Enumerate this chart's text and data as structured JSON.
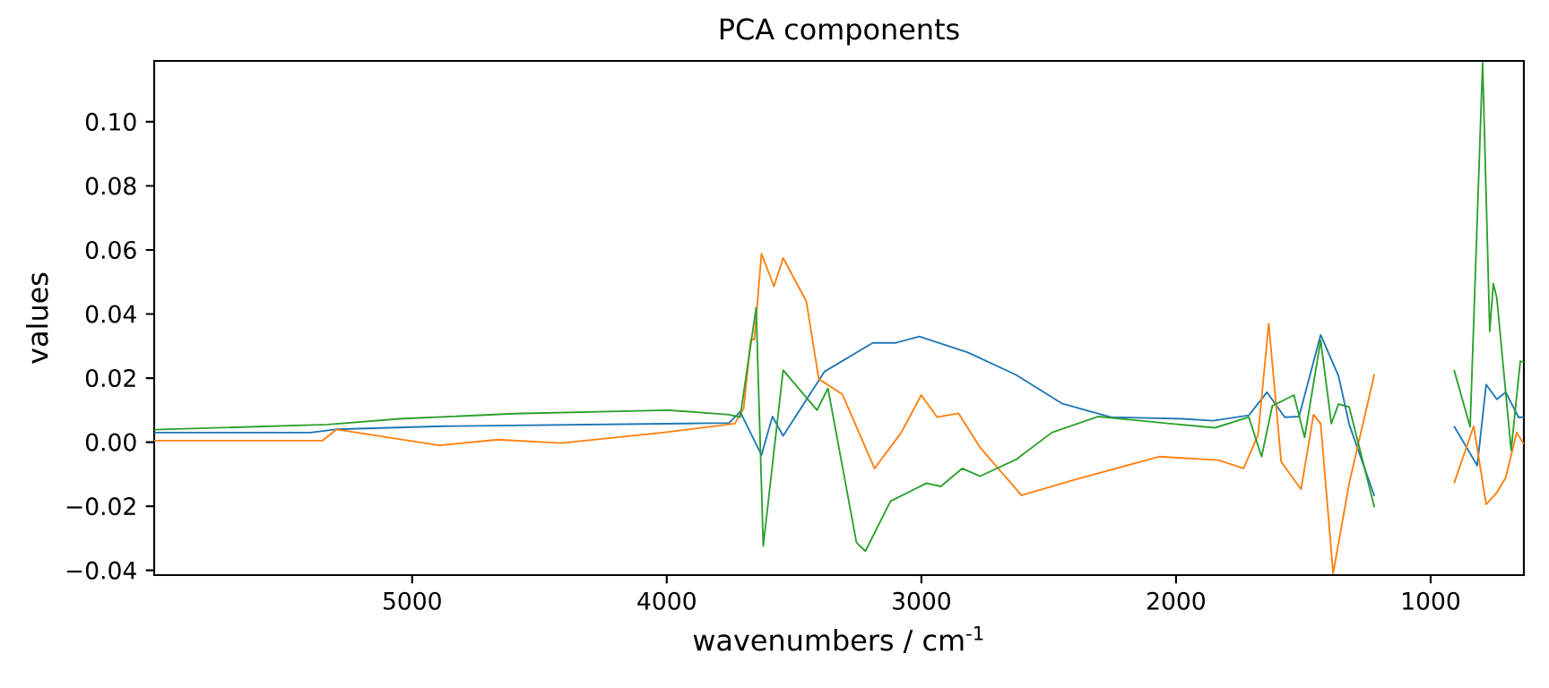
{
  "chart_data": {
    "type": "line",
    "title": "PCA components",
    "xlabel": "wavenumbers / cm$^{-1}$",
    "ylabel": "values",
    "xlim": [
      6013,
      634
    ],
    "ylim": [
      -0.0415,
      0.119
    ],
    "xticks": [
      5000,
      4000,
      3000,
      2000,
      1000
    ],
    "yticks": [
      {
        "value": -0.04,
        "label": "−0.04"
      },
      {
        "value": -0.02,
        "label": "−0.02"
      },
      {
        "value": 0,
        "label": "0.00"
      },
      {
        "value": 0.02,
        "label": "0.02"
      },
      {
        "value": 0.04,
        "label": "0.04"
      },
      {
        "value": 0.06,
        "label": "0.06"
      },
      {
        "value": 0.08,
        "label": "0.08"
      },
      {
        "value": 0.1,
        "label": "0.10"
      }
    ],
    "series": [
      {
        "color": "#1f77b4",
        "x": [
          6013,
          5400,
          5300,
          4880,
          3755,
          3712,
          3628,
          3585,
          3543,
          3381,
          3191,
          3100,
          3008,
          2818,
          2628,
          2446,
          2256,
          1974,
          1855,
          1714,
          1643,
          1573,
          1517,
          1432,
          1362,
          1320,
          1221,
          1070,
          908,
          817,
          782,
          740,
          705,
          655,
          634
        ],
        "values": [
          0.003,
          0.003,
          0.004,
          0.005,
          0.006,
          0.0095,
          -0.004,
          0.008,
          0.002,
          0.022,
          0.031,
          0.031,
          0.033,
          0.028,
          0.021,
          0.012,
          0.0078,
          0.0073,
          0.0067,
          0.0084,
          0.0156,
          0.0078,
          0.008,
          0.0335,
          0.0207,
          0.0056,
          -0.0168,
          null,
          0.005,
          -0.0073,
          0.018,
          0.0134,
          0.0156,
          0.0078,
          0.0078
        ]
      },
      {
        "color": "#ff7f0e",
        "x": [
          6013,
          5352,
          5296,
          4894,
          4662,
          4416,
          4015,
          3733,
          3698,
          3670,
          3656,
          3628,
          3579,
          3543,
          3452,
          3403,
          3311,
          3184,
          3079,
          3001,
          2938,
          2854,
          2769,
          2607,
          2396,
          2065,
          1833,
          1735,
          1678,
          1636,
          1587,
          1509,
          1460,
          1432,
          1383,
          1320,
          1221,
          1070,
          908,
          831,
          782,
          740,
          705,
          662,
          634
        ],
        "values": [
          0.0005,
          0.0005,
          0.004,
          -0.001,
          0.0008,
          -0.0003,
          0.003,
          0.0058,
          0.0105,
          0.032,
          0.032,
          0.0588,
          0.0486,
          0.0575,
          0.044,
          0.0197,
          0.015,
          -0.0082,
          0.003,
          0.0147,
          0.0078,
          0.009,
          -0.0017,
          -0.0166,
          -0.0117,
          -0.0045,
          -0.0056,
          -0.0082,
          0.0022,
          0.037,
          -0.0061,
          -0.0147,
          0.0086,
          0.0058,
          -0.041,
          -0.0128,
          0.0212,
          null,
          -0.0128,
          0.005,
          -0.0194,
          -0.0157,
          -0.011,
          0.003,
          -0.0006
        ]
      },
      {
        "color": "#2ca02c",
        "x": [
          6013,
          5331,
          5049,
          4599,
          3994,
          3755,
          3712,
          3649,
          3621,
          3543,
          3410,
          3367,
          3255,
          3220,
          3121,
          2980,
          2924,
          2840,
          2769,
          2628,
          2488,
          2305,
          2023,
          1847,
          1714,
          1664,
          1622,
          1537,
          1495,
          1432,
          1390,
          1362,
          1320,
          1221,
          1070,
          908,
          845,
          796,
          768,
          754,
          740,
          684,
          648,
          634
        ],
        "values": [
          0.0039,
          0.0055,
          0.0073,
          0.0089,
          0.01,
          0.0086,
          0.0078,
          0.042,
          -0.0324,
          0.0225,
          0.01,
          0.0168,
          -0.0313,
          -0.034,
          -0.0184,
          -0.0128,
          -0.0138,
          -0.0082,
          -0.0106,
          -0.0054,
          0.003,
          0.008,
          0.0058,
          0.0045,
          0.0078,
          -0.0045,
          0.0113,
          0.0147,
          0.0015,
          0.0318,
          0.0058,
          0.0119,
          0.011,
          -0.0203,
          null,
          0.0225,
          0.0048,
          0.1184,
          0.0346,
          0.0495,
          0.0449,
          -0.0026,
          0.0253,
          0.025
        ]
      }
    ]
  }
}
